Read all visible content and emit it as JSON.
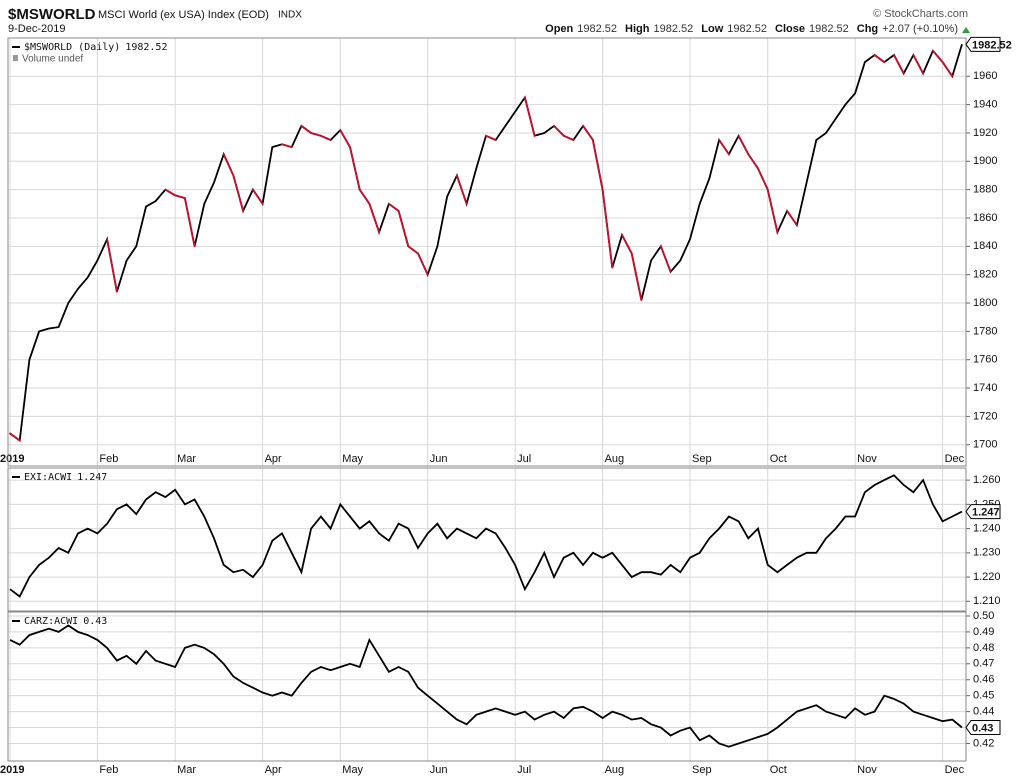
{
  "header": {
    "symbol": "$MSWORLD",
    "description": "MSCI World (ex USA) Index (EOD)",
    "exchange": "INDX",
    "source": "© StockCharts.com",
    "date": "9-Dec-2019",
    "stats": [
      {
        "label": "Open",
        "value": 1982.52
      },
      {
        "label": "High",
        "value": 1982.52
      },
      {
        "label": "Low",
        "value": 1982.52
      },
      {
        "label": "Close",
        "value": 1982.52
      },
      {
        "label": "Chg",
        "value": "+2.07 (+0.10%)"
      }
    ]
  },
  "chart_data": [
    {
      "type": "line",
      "volume_note": "Volume undef",
      "down_color": "#c8102e",
      "grid": true,
      "categories": [
        "2019",
        null,
        null,
        null,
        null,
        null,
        null,
        null,
        null,
        "Feb",
        null,
        null,
        null,
        null,
        null,
        null,
        null,
        "Mar",
        null,
        null,
        null,
        null,
        null,
        null,
        null,
        null,
        "Apr",
        null,
        null,
        null,
        null,
        null,
        null,
        null,
        "May",
        null,
        null,
        null,
        null,
        null,
        null,
        null,
        null,
        "Jun",
        null,
        null,
        null,
        null,
        null,
        null,
        null,
        null,
        "Jul",
        null,
        null,
        null,
        null,
        null,
        null,
        null,
        null,
        "Aug",
        null,
        null,
        null,
        null,
        null,
        null,
        null,
        null,
        "Sep",
        null,
        null,
        null,
        null,
        null,
        null,
        null,
        "Oct",
        null,
        null,
        null,
        null,
        null,
        null,
        null,
        null,
        "Nov",
        null,
        null,
        null,
        null,
        null,
        null,
        null,
        null,
        "Dec",
        null,
        null
      ],
      "series": [
        {
          "name": "$MSWORLD (Daily)",
          "color": "#000000",
          "values": [
            1708,
            1703,
            1760,
            1780,
            1782,
            1783,
            1800,
            1810,
            1818,
            1830,
            1845,
            1808,
            1830,
            1840,
            1868,
            1872,
            1880,
            1876,
            1874,
            1840,
            1870,
            1885,
            1905,
            1890,
            1865,
            1880,
            1870,
            1910,
            1912,
            1910,
            1925,
            1920,
            1918,
            1915,
            1922,
            1910,
            1880,
            1870,
            1850,
            1870,
            1865,
            1840,
            1835,
            1820,
            1840,
            1875,
            1890,
            1870,
            1895,
            1918,
            1915,
            1925,
            1935,
            1945,
            1918,
            1920,
            1925,
            1918,
            1915,
            1925,
            1915,
            1880,
            1825,
            1848,
            1835,
            1802,
            1830,
            1840,
            1822,
            1830,
            1845,
            1870,
            1888,
            1915,
            1905,
            1918,
            1905,
            1895,
            1880,
            1850,
            1865,
            1855,
            1885,
            1915,
            1920,
            1930,
            1940,
            1948,
            1970,
            1975,
            1970,
            1975,
            1962,
            1975,
            1962,
            1978,
            1970,
            1960,
            1982.52
          ]
        }
      ],
      "ylim": [
        1685,
        1987
      ],
      "yticks": [
        1700,
        1720,
        1740,
        1760,
        1780,
        1800,
        1820,
        1840,
        1860,
        1880,
        1900,
        1920,
        1940,
        1960
      ]
    },
    {
      "type": "line",
      "grid": true,
      "series": [
        {
          "name": "EXI:ACWI",
          "color": "#000000",
          "values": [
            1.215,
            1.212,
            1.22,
            1.225,
            1.228,
            1.232,
            1.23,
            1.238,
            1.24,
            1.238,
            1.242,
            1.248,
            1.25,
            1.246,
            1.252,
            1.255,
            1.253,
            1.256,
            1.25,
            1.252,
            1.245,
            1.236,
            1.225,
            1.222,
            1.223,
            1.22,
            1.225,
            1.235,
            1.238,
            1.23,
            1.222,
            1.24,
            1.245,
            1.24,
            1.25,
            1.245,
            1.24,
            1.243,
            1.238,
            1.235,
            1.242,
            1.24,
            1.232,
            1.238,
            1.242,
            1.236,
            1.24,
            1.238,
            1.236,
            1.24,
            1.238,
            1.232,
            1.225,
            1.215,
            1.222,
            1.23,
            1.22,
            1.228,
            1.23,
            1.225,
            1.23,
            1.228,
            1.23,
            1.225,
            1.22,
            1.222,
            1.222,
            1.221,
            1.225,
            1.222,
            1.228,
            1.23,
            1.236,
            1.24,
            1.245,
            1.243,
            1.236,
            1.24,
            1.225,
            1.222,
            1.225,
            1.228,
            1.23,
            1.23,
            1.236,
            1.24,
            1.245,
            1.245,
            1.255,
            1.258,
            1.26,
            1.262,
            1.258,
            1.255,
            1.26,
            1.25,
            1.243,
            1.245,
            1.247
          ]
        }
      ],
      "ylim": [
        1.206,
        1.265
      ],
      "yticks": [
        {
          "value": 1.21,
          "label": "1.210"
        },
        {
          "value": 1.22,
          "label": "1.220"
        },
        {
          "value": 1.23,
          "label": "1.230"
        },
        {
          "value": 1.24,
          "label": "1.240"
        },
        {
          "value": 1.25,
          "label": "1.250"
        },
        {
          "value": 1.26,
          "label": "1.260"
        }
      ]
    },
    {
      "type": "line",
      "grid": true,
      "categories": [
        "2019",
        null,
        null,
        null,
        null,
        null,
        null,
        null,
        null,
        "Feb",
        null,
        null,
        null,
        null,
        null,
        null,
        null,
        "Mar",
        null,
        null,
        null,
        null,
        null,
        null,
        null,
        null,
        "Apr",
        null,
        null,
        null,
        null,
        null,
        null,
        null,
        "May",
        null,
        null,
        null,
        null,
        null,
        null,
        null,
        null,
        "Jun",
        null,
        null,
        null,
        null,
        null,
        null,
        null,
        null,
        "Jul",
        null,
        null,
        null,
        null,
        null,
        null,
        null,
        null,
        "Aug",
        null,
        null,
        null,
        null,
        null,
        null,
        null,
        null,
        "Sep",
        null,
        null,
        null,
        null,
        null,
        null,
        null,
        "Oct",
        null,
        null,
        null,
        null,
        null,
        null,
        null,
        null,
        "Nov",
        null,
        null,
        null,
        null,
        null,
        null,
        null,
        null,
        "Dec",
        null,
        null
      ],
      "series": [
        {
          "name": "CARZ:ACWI",
          "color": "#000000",
          "values": [
            0.485,
            0.482,
            0.488,
            0.49,
            0.492,
            0.49,
            0.494,
            0.49,
            0.488,
            0.485,
            0.48,
            0.472,
            0.475,
            0.47,
            0.478,
            0.472,
            0.47,
            0.468,
            0.48,
            0.482,
            0.48,
            0.476,
            0.47,
            0.462,
            0.458,
            0.455,
            0.452,
            0.45,
            0.452,
            0.45,
            0.458,
            0.465,
            0.468,
            0.466,
            0.468,
            0.47,
            0.468,
            0.485,
            0.475,
            0.465,
            0.468,
            0.465,
            0.455,
            0.45,
            0.445,
            0.44,
            0.435,
            0.432,
            0.438,
            0.44,
            0.442,
            0.44,
            0.438,
            0.44,
            0.435,
            0.438,
            0.44,
            0.436,
            0.442,
            0.443,
            0.44,
            0.436,
            0.44,
            0.438,
            0.435,
            0.436,
            0.432,
            0.43,
            0.425,
            0.428,
            0.43,
            0.422,
            0.425,
            0.42,
            0.418,
            0.42,
            0.422,
            0.424,
            0.426,
            0.43,
            0.435,
            0.44,
            0.442,
            0.444,
            0.44,
            0.438,
            0.436,
            0.442,
            0.438,
            0.44,
            0.45,
            0.448,
            0.445,
            0.44,
            0.438,
            0.436,
            0.434,
            0.435,
            0.43
          ]
        }
      ],
      "ylim": [
        0.409,
        0.5025
      ],
      "yticks": [
        0.42,
        0.43,
        0.44,
        0.45,
        0.46,
        0.47,
        0.48,
        0.49,
        {
          "value": 0.5,
          "label": "0.50"
        }
      ]
    }
  ]
}
